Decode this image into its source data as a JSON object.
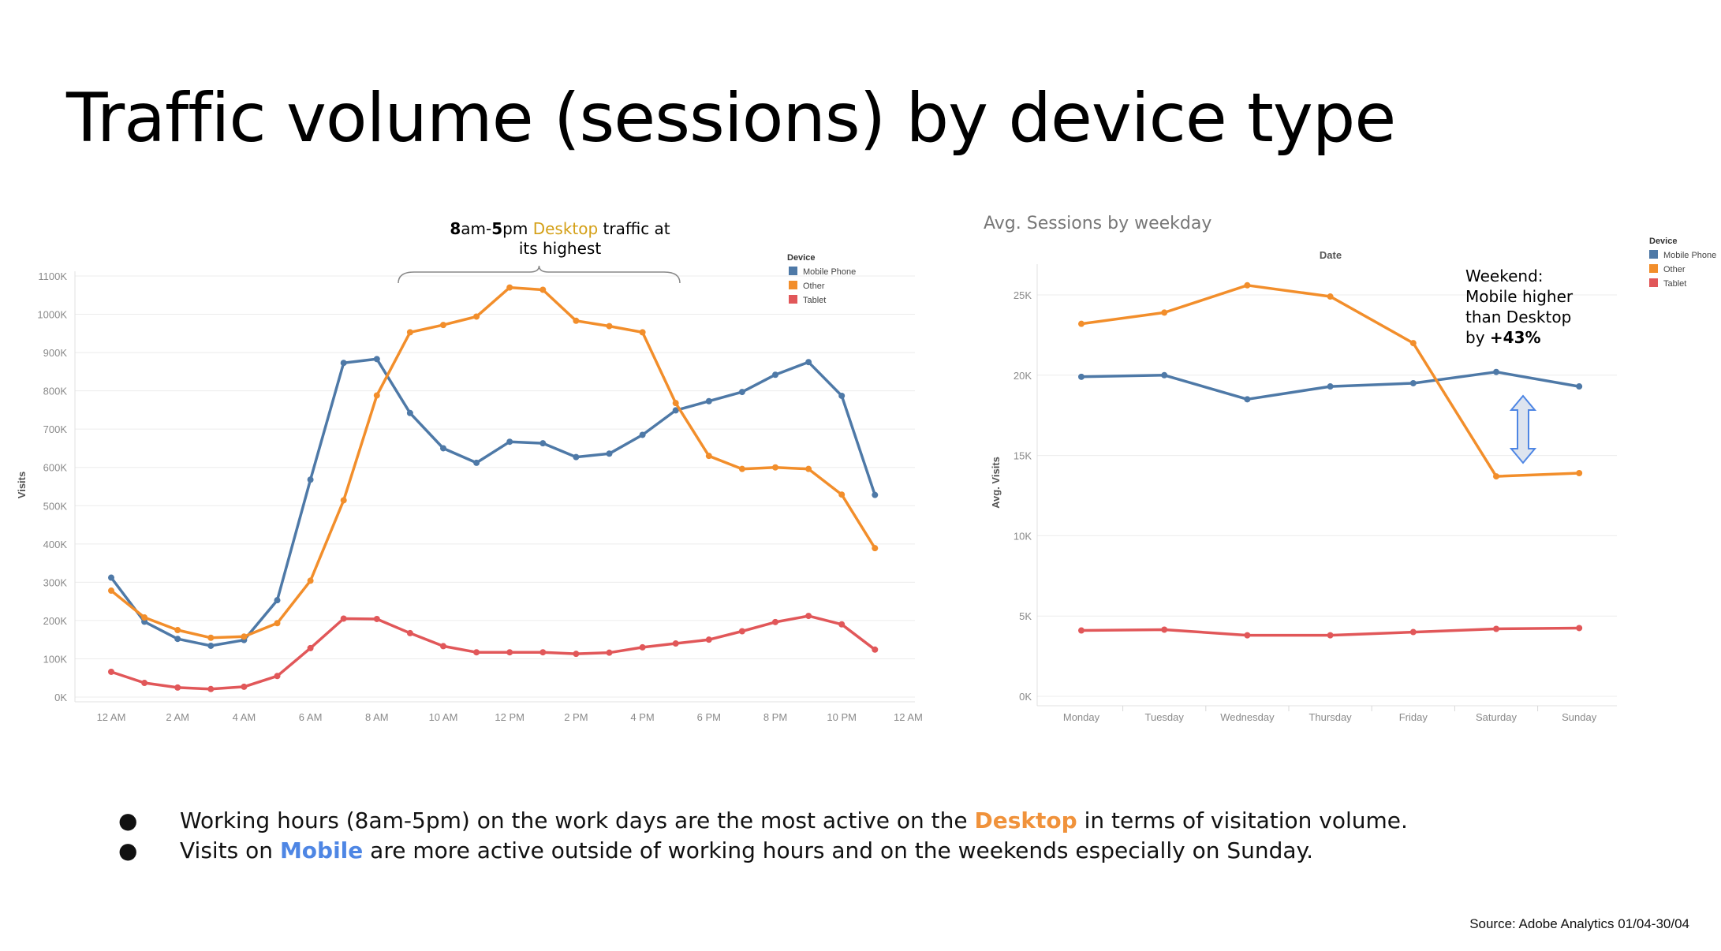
{
  "slide": {
    "title": "Traffic volume (sessions) by device type",
    "source": "Source: Adobe Analytics 01/04-30/04"
  },
  "annotation_left": {
    "part1": "8",
    "part2": "am-",
    "part3": "5",
    "part4": "pm ",
    "part5": "Desktop",
    "part6": " traffic at",
    "line2": "its highest"
  },
  "annotation_right": {
    "line1": "Weekend:",
    "line2": "Mobile higher",
    "line3": "than Desktop",
    "line4_prefix": "by ",
    "line4_value": "+43%"
  },
  "bullets": [
    {
      "pre": "Working hours (8am-5pm) on the work days are the most active on the ",
      "highlight": "Desktop",
      "post": " in terms of visitation volume."
    },
    {
      "pre": "Visits on ",
      "highlight": "Mobile",
      "post": " are more active outside of working hours and on the weekends especially on Sunday."
    }
  ],
  "chart_data": [
    {
      "type": "line",
      "title": "",
      "xlabel": "",
      "ylabel": "Visits",
      "legend_title": "Device",
      "legend_position": "top-right",
      "grid": true,
      "x_tick_labels": [
        "12 AM",
        "2 AM",
        "4 AM",
        "6 AM",
        "8 AM",
        "10 AM",
        "12 PM",
        "2 PM",
        "4 PM",
        "6 PM",
        "8 PM",
        "10 PM",
        "12 AM"
      ],
      "y_tick_labels": [
        "0K",
        "100K",
        "200K",
        "300K",
        "400K",
        "500K",
        "600K",
        "700K",
        "800K",
        "900K",
        "1000K",
        "1100K"
      ],
      "ylim": [
        0,
        1100000
      ],
      "x": [
        0,
        1,
        2,
        3,
        4,
        5,
        6,
        7,
        8,
        9,
        10,
        11,
        12,
        13,
        14,
        15,
        16,
        17,
        18,
        19,
        20,
        21,
        22,
        23
      ],
      "series": [
        {
          "name": "Mobile Phone",
          "color": "#4e79a7",
          "values": [
            312000,
            197000,
            152000,
            134000,
            149000,
            253000,
            568000,
            873000,
            883000,
            742000,
            650000,
            612000,
            667000,
            663000,
            627000,
            636000,
            685000,
            749000,
            773000,
            797000,
            842000,
            875000,
            787000,
            528000
          ]
        },
        {
          "name": "Other",
          "color": "#f28e2b",
          "values": [
            278000,
            208000,
            175000,
            155000,
            158000,
            193000,
            304000,
            514000,
            788000,
            953000,
            972000,
            994000,
            1070000,
            1064000,
            983000,
            969000,
            953000,
            768000,
            630000,
            596000,
            600000,
            596000,
            529000,
            389000
          ]
        },
        {
          "name": "Tablet",
          "color": "#e15759",
          "values": [
            66000,
            37000,
            25000,
            21000,
            27000,
            55000,
            128000,
            205000,
            204000,
            167000,
            133000,
            117000,
            117000,
            117000,
            113000,
            116000,
            130000,
            140000,
            150000,
            172000,
            196000,
            212000,
            190000,
            124000
          ]
        }
      ]
    },
    {
      "type": "line",
      "title": "Avg. Sessions by weekday",
      "xlabel": "Date",
      "ylabel": "Avg. Visits",
      "legend_title": "Device",
      "legend_position": "top-right",
      "grid": true,
      "categories": [
        "Monday",
        "Tuesday",
        "Wednesday",
        "Thursday",
        "Friday",
        "Saturday",
        "Sunday"
      ],
      "y_tick_labels": [
        "0K",
        "5K",
        "10K",
        "15K",
        "20K",
        "25K"
      ],
      "ylim": [
        0,
        27000
      ],
      "series": [
        {
          "name": "Mobile Phone",
          "color": "#4e79a7",
          "values": [
            19900,
            20000,
            18500,
            19300,
            19500,
            20200,
            19300
          ]
        },
        {
          "name": "Other",
          "color": "#f28e2b",
          "values": [
            23200,
            23900,
            25600,
            24900,
            22000,
            13700,
            13900
          ]
        },
        {
          "name": "Tablet",
          "color": "#e15759",
          "values": [
            4100,
            4150,
            3800,
            3800,
            4000,
            4200,
            4250
          ]
        }
      ]
    }
  ]
}
